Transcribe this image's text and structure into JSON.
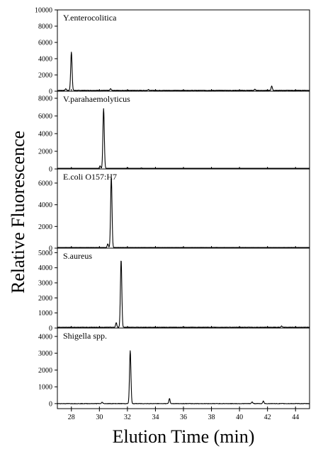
{
  "chart_data": {
    "type": "line",
    "xlabel": "Elution Time (min)",
    "ylabel": "Relative Fluorescence",
    "xlim": [
      27,
      45
    ],
    "xticks": [
      "28",
      "30",
      "32",
      "34",
      "36",
      "38",
      "40",
      "42",
      "44"
    ],
    "panels": [
      {
        "name": "Y.enterocolitica",
        "ylim": [
          0,
          10000
        ],
        "yticks": [
          "0",
          "2000",
          "4000",
          "6000",
          "8000",
          "10000"
        ],
        "baseline": 100,
        "peaks": [
          [
            27.6,
            200
          ],
          [
            28.0,
            4700
          ],
          [
            30.8,
            200
          ],
          [
            33.5,
            120
          ],
          [
            41.1,
            130
          ],
          [
            42.3,
            550
          ]
        ]
      },
      {
        "name": "V.parahaemolyticus",
        "ylim": [
          0,
          8800
        ],
        "yticks": [
          "0",
          "2000",
          "4000",
          "6000",
          "8000"
        ],
        "baseline": 50,
        "peaks": [
          [
            30.05,
            300
          ],
          [
            30.3,
            6800
          ],
          [
            32.0,
            80
          ],
          [
            33.0,
            60
          ]
        ]
      },
      {
        "name": "E.coli O157:H7",
        "ylim": [
          0,
          7300
        ],
        "yticks": [
          "0",
          "2000",
          "4000",
          "6000"
        ],
        "baseline": 50,
        "peaks": [
          [
            30.85,
            6550
          ],
          [
            30.6,
            350
          ]
        ]
      },
      {
        "name": "S.aureus",
        "ylim": [
          0,
          5300
        ],
        "yticks": [
          "0",
          "1000",
          "2000",
          "3000",
          "4000",
          "5000"
        ],
        "baseline": 50,
        "peaks": [
          [
            31.2,
            300
          ],
          [
            31.55,
            4480
          ],
          [
            43.0,
            80
          ]
        ]
      },
      {
        "name": "Shigella spp.",
        "ylim": [
          -300,
          4500
        ],
        "yticks": [
          "0",
          "1000",
          "2000",
          "3000",
          "4000"
        ],
        "baseline": 0,
        "peaks": [
          [
            30.2,
            80
          ],
          [
            32.2,
            3150
          ],
          [
            35.0,
            300
          ],
          [
            40.9,
            100
          ],
          [
            41.7,
            150
          ]
        ]
      }
    ]
  }
}
